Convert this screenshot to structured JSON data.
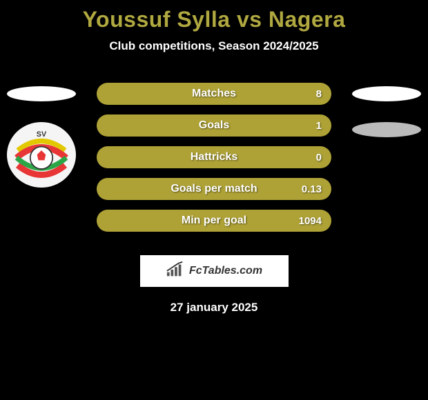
{
  "title": "Youssuf Sylla vs Nagera",
  "title_color": "#b0a840",
  "subtitle": "Club competitions, Season 2024/2025",
  "subtitle_color": "#ffffff",
  "date": "27 january 2025",
  "date_color": "#ffffff",
  "left": {
    "ellipse_color": "#ffffff",
    "show_logo": true,
    "logo": {
      "bg": "#f5f5f5",
      "top_band": "#e2c800",
      "mid_band": "#e83535",
      "accent": "#2aa646",
      "text": "SV"
    }
  },
  "right": {
    "top_ellipse_color": "#ffffff",
    "second_ellipse_color": "#bbbbbb",
    "show_logo": false
  },
  "stat_bar_bg": "#aea236",
  "stat_label_color": "#ffffff",
  "value_color": "#ffffff",
  "stats": [
    {
      "label": "Matches",
      "value_right": "8"
    },
    {
      "label": "Goals",
      "value_right": "1"
    },
    {
      "label": "Hattricks",
      "value_right": "0"
    },
    {
      "label": "Goals per match",
      "value_right": "0.13"
    },
    {
      "label": "Min per goal",
      "value_right": "1094"
    }
  ],
  "branding": {
    "label": "FcTables.com",
    "bar_color": "#555555"
  },
  "background_color": "#000000"
}
